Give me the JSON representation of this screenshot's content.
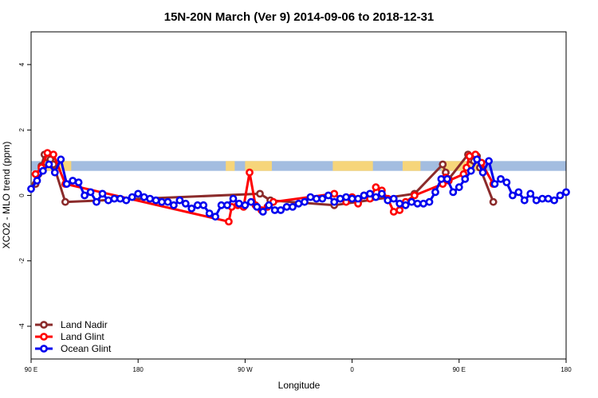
{
  "chart_data": {
    "type": "line",
    "title": "15N-20N March (Ver 9)   2014-09-06 to 2018-12-31",
    "xlabel": "Longitude",
    "ylabel": "XCO2 - MLO trend (ppm)",
    "xlim": [
      0,
      360
    ],
    "ylim": [
      -5,
      5
    ],
    "xticks": [
      {
        "value": 0,
        "label": "90 E"
      },
      {
        "value": 72,
        "label": "180"
      },
      {
        "value": 144,
        "label": "90 W"
      },
      {
        "value": 216,
        "label": "0"
      },
      {
        "value": 288,
        "label": "90 E"
      },
      {
        "value": 360,
        "label": "180"
      }
    ],
    "yticks": [
      {
        "value": -4,
        "label": "-4"
      },
      {
        "value": -2,
        "label": "-2"
      },
      {
        "value": 0,
        "label": "0"
      },
      {
        "value": 2,
        "label": "2"
      },
      {
        "value": 4,
        "label": "4"
      }
    ],
    "band": {
      "ymin": 0.75,
      "ymax": 1.05,
      "ocean_color": "#a3bde0",
      "land_color": "#f6d57a"
    },
    "land_segments": [
      [
        7,
        27
      ],
      [
        131,
        137
      ],
      [
        144,
        162
      ],
      [
        203,
        230
      ],
      [
        250,
        262
      ],
      [
        276,
        302
      ]
    ],
    "legend_position": "bottom-left",
    "series": [
      {
        "name": "Land Nadir",
        "color": "#8b2b2b",
        "x": [
          3,
          5,
          7,
          9,
          11,
          13,
          15,
          23,
          154,
          161,
          204,
          258,
          277,
          279,
          281,
          294,
          296,
          298,
          300,
          302,
          311
        ],
        "y": [
          0.35,
          0.65,
          0.9,
          1.25,
          1.15,
          1.1,
          0.95,
          -0.2,
          0.05,
          -0.15,
          -0.3,
          0.05,
          0.95,
          0.7,
          0.5,
          1.25,
          1.1,
          1.05,
          1.2,
          0.85,
          -0.2
        ]
      },
      {
        "name": "Land Glint",
        "color": "#ff0000",
        "x": [
          3,
          7,
          11,
          15,
          23,
          133,
          135,
          139,
          143,
          147,
          151,
          155,
          159,
          163,
          204,
          208,
          212,
          216,
          220,
          224,
          228,
          232,
          236,
          240,
          244,
          248,
          252,
          258,
          277,
          279,
          281,
          291,
          293,
          295,
          299,
          303,
          311
        ],
        "y": [
          0.65,
          0.85,
          1.3,
          1.25,
          0.35,
          -0.8,
          -0.35,
          -0.3,
          -0.35,
          0.7,
          -0.3,
          -0.45,
          -0.35,
          -0.2,
          0.05,
          -0.1,
          -0.2,
          -0.05,
          -0.25,
          0.0,
          -0.1,
          0.25,
          0.15,
          -0.1,
          -0.5,
          -0.45,
          -0.2,
          0.0,
          0.35,
          0.55,
          0.45,
          0.65,
          0.85,
          1.2,
          1.25,
          1.0,
          0.35
        ]
      },
      {
        "name": "Ocean Glint",
        "color": "#0000ee",
        "x": [
          0,
          4,
          8,
          12,
          16,
          20,
          24,
          28,
          32,
          36,
          40,
          44,
          48,
          52,
          56,
          60,
          64,
          68,
          72,
          76,
          80,
          84,
          88,
          92,
          96,
          100,
          104,
          108,
          112,
          116,
          120,
          124,
          128,
          132,
          136,
          140,
          144,
          148,
          152,
          156,
          160,
          164,
          168,
          172,
          176,
          180,
          184,
          188,
          192,
          196,
          200,
          204,
          208,
          212,
          216,
          220,
          224,
          228,
          232,
          236,
          240,
          244,
          248,
          252,
          256,
          260,
          264,
          268,
          272,
          276,
          280,
          284,
          288,
          292,
          296,
          300,
          304,
          308,
          312,
          316,
          320,
          324,
          328,
          332,
          336,
          340,
          344,
          348,
          352,
          356,
          360
        ],
        "y": [
          0.2,
          0.45,
          0.75,
          0.95,
          0.7,
          1.1,
          0.35,
          0.45,
          0.4,
          0.0,
          0.1,
          -0.2,
          0.05,
          -0.15,
          -0.1,
          -0.1,
          -0.15,
          -0.05,
          0.05,
          -0.05,
          -0.1,
          -0.15,
          -0.2,
          -0.2,
          -0.3,
          -0.15,
          -0.25,
          -0.4,
          -0.3,
          -0.3,
          -0.55,
          -0.65,
          -0.3,
          -0.3,
          -0.1,
          -0.25,
          -0.3,
          -0.2,
          -0.35,
          -0.5,
          -0.3,
          -0.45,
          -0.45,
          -0.35,
          -0.35,
          -0.25,
          -0.2,
          -0.05,
          -0.1,
          -0.1,
          0.0,
          -0.2,
          -0.1,
          -0.05,
          -0.1,
          -0.1,
          0.0,
          0.05,
          -0.05,
          0.05,
          -0.15,
          -0.1,
          -0.25,
          -0.3,
          -0.2,
          -0.25,
          -0.25,
          -0.2,
          0.1,
          0.5,
          0.5,
          0.1,
          0.25,
          0.5,
          0.75,
          1.1,
          0.7,
          1.05,
          0.35,
          0.5,
          0.4,
          0.0,
          0.1,
          -0.15,
          0.05,
          -0.15,
          -0.1,
          -0.1,
          -0.15,
          0.0,
          0.1
        ]
      }
    ]
  }
}
